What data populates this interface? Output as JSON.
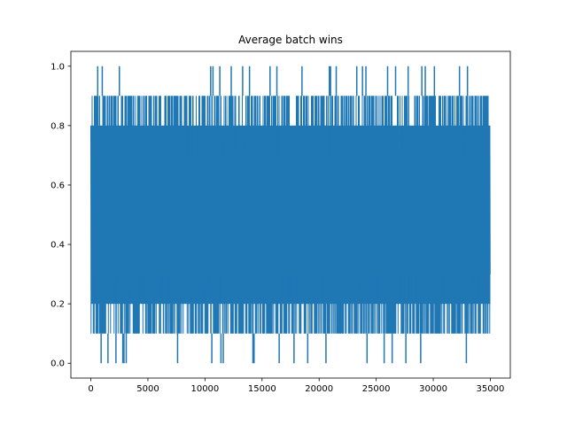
{
  "chart_data": {
    "type": "line",
    "title": "Average batch wins",
    "xlabel": "",
    "ylabel": "",
    "xlim": [
      -1750,
      36750
    ],
    "ylim": [
      -0.05,
      1.05
    ],
    "x_ticks": [
      0,
      5000,
      10000,
      15000,
      20000,
      25000,
      30000,
      35000
    ],
    "x_tick_labels": [
      "0",
      "5000",
      "10000",
      "15000",
      "20000",
      "25000",
      "30000",
      "35000"
    ],
    "y_ticks": [
      0.0,
      0.2,
      0.4,
      0.6,
      0.8,
      1.0
    ],
    "y_tick_labels": [
      "0.0",
      "0.2",
      "0.4",
      "0.6",
      "0.8",
      "1.0"
    ],
    "grid": false,
    "legend": "none",
    "series": [
      {
        "color": "#1f77b4",
        "x_range": [
          0,
          35000
        ],
        "value_levels": [
          0.0,
          0.1,
          0.2,
          0.3,
          0.4,
          0.5,
          0.6,
          0.7,
          0.8,
          0.9,
          1.0
        ],
        "dense_band": [
          0.1,
          0.9
        ],
        "core_band": [
          0.2,
          0.8
        ],
        "spikes_to_1.0_x": [
          600,
          1000,
          2500,
          10500,
          10700,
          11300,
          12300,
          13300,
          13900,
          15700,
          16300,
          18500,
          20900,
          21000,
          21500,
          23300,
          23800,
          24100,
          26000,
          26700,
          27800,
          29000,
          29300,
          30100,
          32300,
          33000
        ],
        "dips_to_0.0_x": [
          900,
          1500,
          2200,
          2800,
          2900,
          3100,
          7600,
          10600,
          11400,
          11600,
          14200,
          14300,
          16500,
          17800,
          19000,
          20600,
          24200,
          25700,
          26400,
          27600,
          28900,
          32900
        ]
      }
    ]
  }
}
